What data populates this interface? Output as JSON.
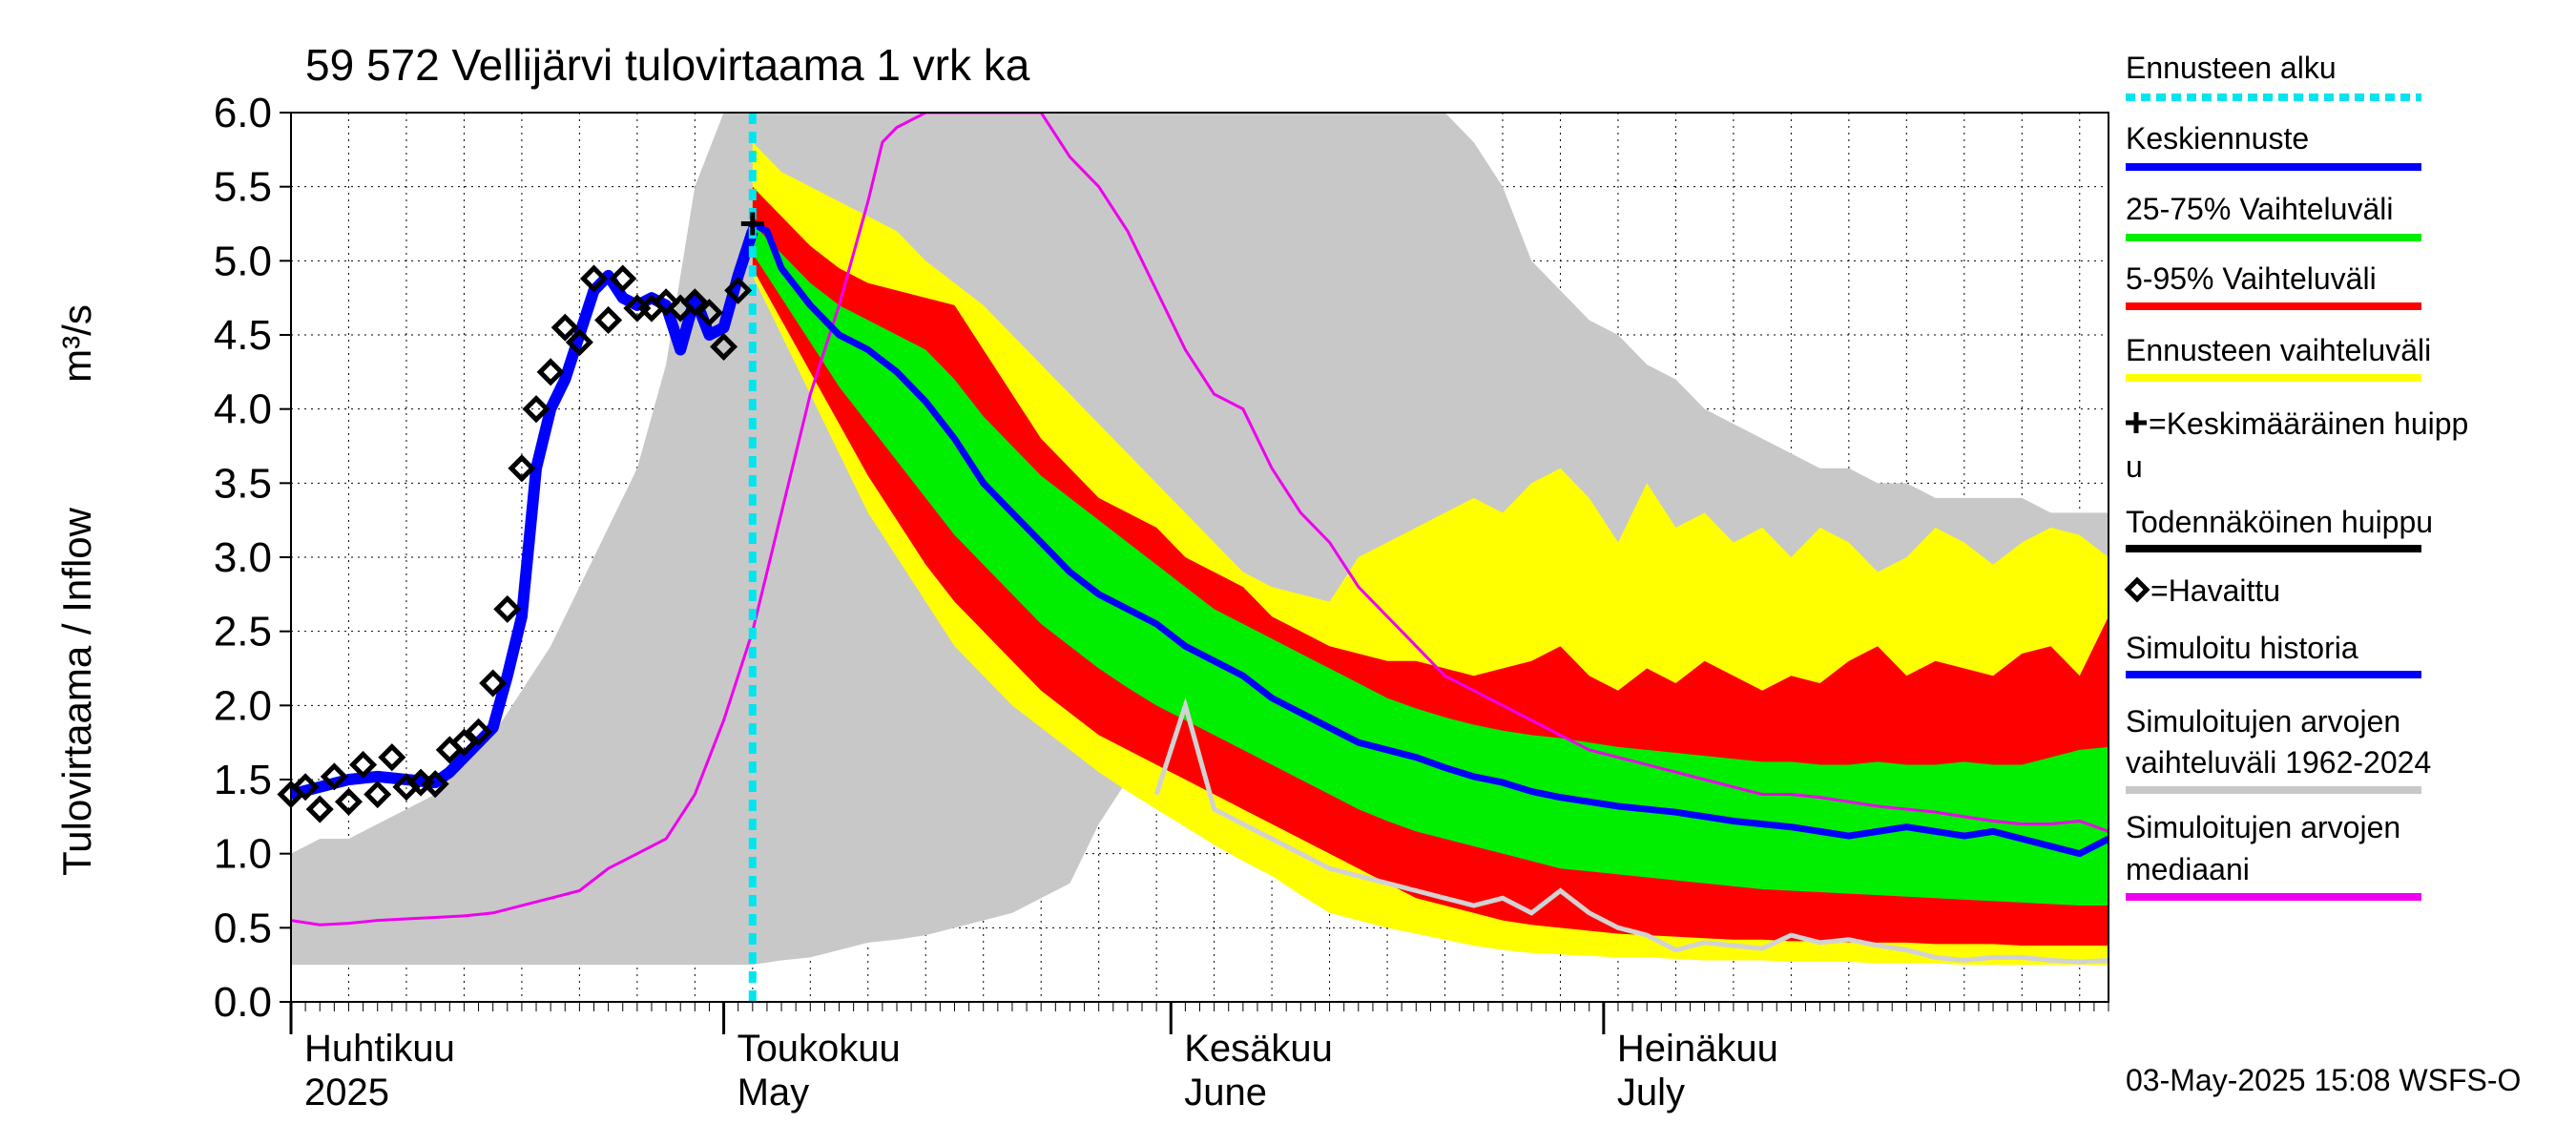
{
  "chart_data": {
    "type": "area",
    "title": "59 572 Vellijärvi tulovirtaama 1 vrk ka",
    "ylabel_fi": "Tulovirtaama / Inflow",
    "ylabel_unit": "m³/s",
    "ylim": [
      0,
      6.0
    ],
    "y_ticks": [
      "0.0",
      "0.5",
      "1.0",
      "1.5",
      "2.0",
      "2.5",
      "3.0",
      "3.5",
      "4.0",
      "4.5",
      "5.0",
      "5.5",
      "6.0"
    ],
    "x_range_days": [
      0,
      126
    ],
    "x_months": [
      {
        "label": "Huhtikuu",
        "sub": "2025",
        "day": 0
      },
      {
        "label": "Toukokuu",
        "sub": "May",
        "day": 30
      },
      {
        "label": "Kesäkuu",
        "sub": "June",
        "day": 61
      },
      {
        "label": "Heinäkuu",
        "sub": "July",
        "day": 91
      }
    ],
    "forecast_start_day": 32,
    "timestamp": "03-May-2025 15:08 WSFS-O",
    "legend": [
      {
        "label": "Ennusteen alku",
        "color": "#00e5ee",
        "style": "dotted"
      },
      {
        "label": "Keskiennuste",
        "color": "#0000ff",
        "style": "line"
      },
      {
        "label": "25-75% Vaihteluväli",
        "color": "#00ee00",
        "style": "line"
      },
      {
        "label": "5-95% Vaihteluväli",
        "color": "#ff0000",
        "style": "line"
      },
      {
        "label": "Ennusteen vaihteluväli",
        "color": "#ffff00",
        "style": "line"
      },
      {
        "label": "=Keskimääräinen huipp",
        "label2": "u",
        "color": "#000000",
        "style": "plus"
      },
      {
        "label": "Todennäköinen huippu",
        "color": "#000000",
        "style": "line"
      },
      {
        "label": "=Havaittu",
        "color": "#000000",
        "style": "diamond"
      },
      {
        "label": "Simuloitu historia",
        "color": "#0000ff",
        "style": "line"
      },
      {
        "label": "Simuloitujen arvojen",
        "label2": "vaihteluväli 1962-2024",
        "color": "#c8c8c8",
        "style": "line"
      },
      {
        "label": "Simuloitujen arvojen",
        "label2": "mediaani",
        "color": "#ee00ee",
        "style": "line"
      }
    ],
    "series": {
      "hist_range": {
        "x": [
          0,
          2,
          4,
          6,
          8,
          10,
          12,
          14,
          16,
          18,
          20,
          22,
          24,
          26,
          28,
          30,
          32,
          34,
          36,
          38,
          40,
          42,
          44,
          46,
          48,
          50,
          52,
          54,
          56,
          58,
          60,
          62,
          64,
          66,
          68,
          70,
          72,
          74,
          76,
          78,
          80,
          82,
          84,
          86,
          88,
          90,
          92,
          94,
          96,
          98,
          100,
          102,
          104,
          106,
          108,
          110,
          112,
          114,
          116,
          118,
          120,
          122,
          124,
          126
        ],
        "low": [
          0.25,
          0.25,
          0.25,
          0.25,
          0.25,
          0.25,
          0.25,
          0.25,
          0.25,
          0.25,
          0.25,
          0.25,
          0.25,
          0.25,
          0.25,
          0.25,
          0.25,
          0.28,
          0.3,
          0.35,
          0.4,
          0.42,
          0.45,
          0.5,
          0.55,
          0.6,
          0.7,
          0.8,
          1.2,
          1.5,
          1.3,
          1.2,
          1.1,
          1.0,
          0.9,
          0.8,
          0.75,
          0.7,
          0.65,
          0.6,
          0.55,
          0.5,
          0.48,
          0.45,
          0.42,
          0.4,
          0.38,
          0.36,
          0.35,
          0.34,
          0.33,
          0.32,
          0.31,
          0.3,
          0.3,
          0.29,
          0.28,
          0.28,
          0.27,
          0.27,
          0.26,
          0.26,
          0.25,
          0.25
        ],
        "high": [
          1.0,
          1.1,
          1.1,
          1.2,
          1.3,
          1.4,
          1.6,
          1.8,
          2.1,
          2.4,
          2.8,
          3.2,
          3.6,
          4.3,
          5.5,
          6.0,
          6.0,
          6.0,
          6.0,
          6.0,
          6.0,
          6.0,
          6.0,
          6.0,
          6.0,
          6.0,
          6.0,
          6.0,
          6.0,
          6.0,
          6.0,
          6.0,
          6.0,
          6.0,
          6.0,
          6.0,
          6.0,
          6.0,
          6.0,
          6.0,
          6.0,
          5.8,
          5.5,
          5.0,
          4.8,
          4.6,
          4.5,
          4.3,
          4.2,
          4.0,
          3.9,
          3.8,
          3.7,
          3.6,
          3.6,
          3.5,
          3.5,
          3.4,
          3.4,
          3.4,
          3.4,
          3.3,
          3.3,
          3.3
        ]
      },
      "forecast_range": {
        "x": [
          32,
          34,
          36,
          38,
          40,
          42,
          44,
          46,
          48,
          50,
          52,
          54,
          56,
          58,
          60,
          62,
          64,
          66,
          68,
          70,
          72,
          74,
          76,
          78,
          80,
          82,
          84,
          86,
          88,
          90,
          92,
          94,
          96,
          98,
          100,
          102,
          104,
          106,
          108,
          110,
          112,
          114,
          116,
          118,
          120,
          122,
          124,
          126
        ],
        "low": [
          4.9,
          4.5,
          4.1,
          3.7,
          3.3,
          3.0,
          2.7,
          2.4,
          2.2,
          2.0,
          1.85,
          1.7,
          1.55,
          1.42,
          1.3,
          1.18,
          1.06,
          0.95,
          0.85,
          0.72,
          0.6,
          0.55,
          0.5,
          0.46,
          0.42,
          0.38,
          0.35,
          0.33,
          0.32,
          0.31,
          0.3,
          0.3,
          0.29,
          0.28,
          0.28,
          0.28,
          0.27,
          0.27,
          0.27,
          0.26,
          0.26,
          0.26,
          0.25,
          0.25,
          0.25,
          0.25,
          0.25,
          0.25
        ],
        "high": [
          5.8,
          5.6,
          5.5,
          5.4,
          5.3,
          5.2,
          5.0,
          4.85,
          4.7,
          4.5,
          4.3,
          4.1,
          3.9,
          3.7,
          3.5,
          3.3,
          3.1,
          2.9,
          2.8,
          2.75,
          2.7,
          3.0,
          3.1,
          3.2,
          3.3,
          3.4,
          3.3,
          3.5,
          3.6,
          3.4,
          3.1,
          3.5,
          3.2,
          3.3,
          3.1,
          3.2,
          3.0,
          3.2,
          3.1,
          2.9,
          3.0,
          3.2,
          3.1,
          2.95,
          3.1,
          3.2,
          3.15,
          3.0
        ]
      },
      "p5_95": {
        "x": [
          32,
          34,
          36,
          38,
          40,
          42,
          44,
          46,
          48,
          50,
          52,
          54,
          56,
          58,
          60,
          62,
          64,
          66,
          68,
          70,
          72,
          74,
          76,
          78,
          80,
          82,
          84,
          86,
          88,
          90,
          92,
          94,
          96,
          98,
          100,
          102,
          104,
          106,
          108,
          110,
          112,
          114,
          116,
          118,
          120,
          122,
          124,
          126
        ],
        "low": [
          4.95,
          4.6,
          4.25,
          3.9,
          3.55,
          3.25,
          2.95,
          2.7,
          2.5,
          2.3,
          2.1,
          1.95,
          1.8,
          1.7,
          1.6,
          1.5,
          1.4,
          1.3,
          1.2,
          1.1,
          1.0,
          0.9,
          0.8,
          0.7,
          0.65,
          0.6,
          0.55,
          0.52,
          0.5,
          0.48,
          0.46,
          0.45,
          0.44,
          0.43,
          0.42,
          0.42,
          0.41,
          0.41,
          0.4,
          0.4,
          0.4,
          0.39,
          0.39,
          0.39,
          0.38,
          0.38,
          0.38,
          0.38
        ],
        "high": [
          5.5,
          5.3,
          5.1,
          4.95,
          4.85,
          4.8,
          4.75,
          4.7,
          4.4,
          4.1,
          3.8,
          3.6,
          3.4,
          3.3,
          3.2,
          3.0,
          2.9,
          2.8,
          2.6,
          2.5,
          2.4,
          2.35,
          2.3,
          2.3,
          2.25,
          2.2,
          2.25,
          2.3,
          2.4,
          2.2,
          2.1,
          2.25,
          2.15,
          2.3,
          2.2,
          2.1,
          2.2,
          2.15,
          2.3,
          2.4,
          2.2,
          2.3,
          2.25,
          2.2,
          2.35,
          2.4,
          2.2,
          2.6
        ]
      },
      "p25_75": {
        "x": [
          32,
          34,
          36,
          38,
          40,
          42,
          44,
          46,
          48,
          50,
          52,
          54,
          56,
          58,
          60,
          62,
          64,
          66,
          68,
          70,
          72,
          74,
          76,
          78,
          80,
          82,
          84,
          86,
          88,
          90,
          92,
          94,
          96,
          98,
          100,
          102,
          104,
          106,
          108,
          110,
          112,
          114,
          116,
          118,
          120,
          122,
          124,
          126
        ],
        "low": [
          5.05,
          4.75,
          4.45,
          4.15,
          3.9,
          3.65,
          3.4,
          3.15,
          2.95,
          2.75,
          2.55,
          2.4,
          2.25,
          2.12,
          2.0,
          1.9,
          1.8,
          1.7,
          1.6,
          1.5,
          1.4,
          1.3,
          1.22,
          1.15,
          1.1,
          1.05,
          1.0,
          0.95,
          0.9,
          0.88,
          0.86,
          0.84,
          0.82,
          0.8,
          0.78,
          0.76,
          0.75,
          0.74,
          0.73,
          0.72,
          0.71,
          0.7,
          0.69,
          0.68,
          0.67,
          0.66,
          0.65,
          0.65
        ],
        "high": [
          5.25,
          5.05,
          4.85,
          4.7,
          4.6,
          4.5,
          4.4,
          4.2,
          3.95,
          3.75,
          3.55,
          3.4,
          3.25,
          3.1,
          2.95,
          2.8,
          2.65,
          2.55,
          2.45,
          2.35,
          2.25,
          2.15,
          2.05,
          1.98,
          1.92,
          1.87,
          1.83,
          1.8,
          1.78,
          1.75,
          1.72,
          1.7,
          1.68,
          1.66,
          1.64,
          1.62,
          1.62,
          1.6,
          1.6,
          1.62,
          1.6,
          1.6,
          1.62,
          1.6,
          1.6,
          1.65,
          1.7,
          1.72
        ]
      },
      "median": {
        "x": [
          0,
          2,
          4,
          6,
          8,
          10,
          12,
          14,
          16,
          18,
          20,
          22,
          24,
          26,
          28,
          30,
          32,
          34,
          36,
          38,
          40,
          41,
          42,
          44,
          46,
          48,
          50,
          52,
          54,
          56,
          58,
          60,
          62,
          64,
          66,
          68,
          70,
          72,
          74,
          76,
          78,
          80,
          82,
          84,
          86,
          88,
          90,
          92,
          94,
          96,
          98,
          100,
          102,
          104,
          106,
          108,
          110,
          112,
          114,
          116,
          118,
          120,
          122,
          124,
          126
        ],
        "y": [
          0.55,
          0.52,
          0.53,
          0.55,
          0.56,
          0.57,
          0.58,
          0.6,
          0.65,
          0.7,
          0.75,
          0.9,
          1.0,
          1.1,
          1.4,
          1.9,
          2.5,
          3.3,
          4.1,
          4.7,
          5.4,
          5.8,
          5.9,
          6.0,
          6.0,
          6.0,
          6.0,
          6.0,
          5.7,
          5.5,
          5.2,
          4.8,
          4.4,
          4.1,
          4.0,
          3.6,
          3.3,
          3.1,
          2.8,
          2.6,
          2.4,
          2.2,
          2.1,
          2.0,
          1.9,
          1.8,
          1.7,
          1.65,
          1.6,
          1.55,
          1.5,
          1.45,
          1.4,
          1.4,
          1.38,
          1.35,
          1.32,
          1.3,
          1.28,
          1.25,
          1.22,
          1.2,
          1.2,
          1.22,
          1.15
        ]
      },
      "sim_history": {
        "x": [
          0,
          2,
          4,
          6,
          8,
          10,
          11,
          12,
          13,
          14,
          15,
          16,
          17,
          18,
          19,
          20,
          21,
          22,
          23,
          24,
          25,
          26,
          27,
          28,
          29,
          30,
          31,
          32
        ],
        "y": [
          1.4,
          1.45,
          1.5,
          1.52,
          1.5,
          1.48,
          1.55,
          1.65,
          1.75,
          1.85,
          2.2,
          2.6,
          3.6,
          4.0,
          4.2,
          4.5,
          4.8,
          4.9,
          4.75,
          4.7,
          4.75,
          4.7,
          4.4,
          4.75,
          4.5,
          4.55,
          4.9,
          5.2
        ]
      },
      "grey_trace": {
        "x": [
          60,
          62,
          64,
          66,
          68,
          70,
          72,
          74,
          76,
          78,
          80,
          82,
          84,
          86,
          88,
          90,
          92,
          94,
          96,
          98,
          100,
          102,
          104,
          106,
          108,
          110,
          112,
          114,
          116,
          118,
          120,
          122,
          124,
          126
        ],
        "y": [
          1.4,
          2.0,
          1.3,
          1.2,
          1.1,
          1.0,
          0.9,
          0.85,
          0.8,
          0.75,
          0.7,
          0.65,
          0.7,
          0.6,
          0.75,
          0.6,
          0.5,
          0.45,
          0.35,
          0.4,
          0.38,
          0.36,
          0.45,
          0.4,
          0.42,
          0.38,
          0.35,
          0.3,
          0.28,
          0.3,
          0.3,
          0.28,
          0.27,
          0.28
        ]
      },
      "mean_forecast": {
        "x": [
          31,
          32,
          33,
          34,
          36,
          38,
          40,
          42,
          44,
          46,
          48,
          50,
          52,
          54,
          56,
          58,
          60,
          62,
          64,
          66,
          68,
          70,
          72,
          74,
          76,
          78,
          80,
          82,
          84,
          86,
          88,
          90,
          92,
          94,
          96,
          98,
          100,
          102,
          104,
          106,
          108,
          110,
          112,
          114,
          116,
          118,
          120,
          122,
          124,
          126
        ],
        "y": [
          4.9,
          5.25,
          5.2,
          4.95,
          4.7,
          4.5,
          4.4,
          4.25,
          4.05,
          3.8,
          3.5,
          3.3,
          3.1,
          2.9,
          2.75,
          2.65,
          2.55,
          2.4,
          2.3,
          2.2,
          2.05,
          1.95,
          1.85,
          1.75,
          1.7,
          1.65,
          1.58,
          1.52,
          1.48,
          1.42,
          1.38,
          1.35,
          1.32,
          1.3,
          1.28,
          1.25,
          1.22,
          1.2,
          1.18,
          1.15,
          1.12,
          1.15,
          1.18,
          1.15,
          1.12,
          1.15,
          1.1,
          1.05,
          1.0,
          1.1
        ]
      },
      "observed": {
        "x": [
          0,
          1,
          2,
          3,
          4,
          5,
          6,
          7,
          8,
          9,
          10,
          11,
          12,
          13,
          14,
          15,
          16,
          17,
          18,
          19,
          20,
          21,
          22,
          23,
          24,
          25,
          26,
          27,
          28,
          29,
          30,
          31
        ],
        "y": [
          1.4,
          1.45,
          1.3,
          1.52,
          1.35,
          1.6,
          1.4,
          1.65,
          1.45,
          1.48,
          1.47,
          1.7,
          1.75,
          1.82,
          2.15,
          2.65,
          3.6,
          4.0,
          4.25,
          4.55,
          4.45,
          4.88,
          4.6,
          4.88,
          4.68,
          4.68,
          4.72,
          4.68,
          4.72,
          4.65,
          4.42,
          4.8
        ]
      },
      "mean_peak": {
        "x": 32,
        "y": 5.25
      }
    }
  }
}
